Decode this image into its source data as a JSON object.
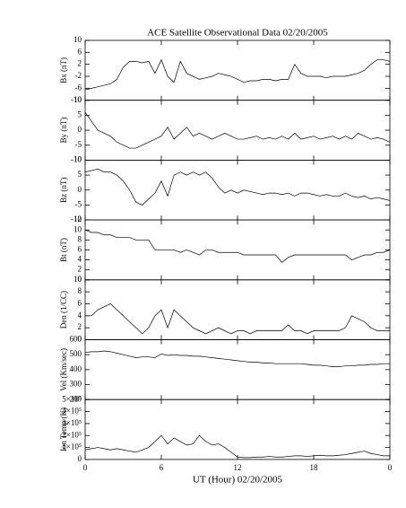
{
  "chart_data": [
    {
      "type": "line",
      "title": "ACE Satellite Observational Data   02/20/2005",
      "ylabel": "Bx (nT)",
      "xlim": [
        0,
        24
      ],
      "ylim": [
        -10,
        10
      ],
      "yticks": [
        10,
        6,
        2,
        -2,
        -6,
        -10
      ],
      "x": [
        0,
        0.5,
        1,
        1.5,
        2,
        2.5,
        3,
        3.5,
        4,
        4.5,
        5,
        5.5,
        6,
        6.5,
        7,
        7.5,
        8,
        8.5,
        9,
        9.5,
        10,
        10.5,
        11,
        11.5,
        12,
        12.5,
        13,
        13.5,
        14,
        14.5,
        15,
        15.5,
        16,
        16.5,
        17,
        17.5,
        18,
        18.5,
        19,
        19.5,
        20,
        20.5,
        21,
        21.5,
        22,
        22.5,
        23,
        23.5,
        24
      ],
      "color": "#000000",
      "values": [
        -6.5,
        -6,
        -5.5,
        -5,
        -4.5,
        -3,
        1,
        3,
        3,
        2.5,
        3,
        -1,
        3.5,
        -2,
        -4,
        3,
        -1,
        -2,
        -3,
        -2.5,
        -2,
        -1,
        -1.5,
        -2,
        -3,
        -4,
        -3.5,
        -3.5,
        -3,
        -3,
        -3.5,
        -3,
        -3,
        2,
        -1,
        -2,
        -2,
        -2,
        -2.5,
        -2,
        -2,
        -2,
        -1.5,
        -1,
        0,
        2,
        3.5,
        3.5,
        3
      ]
    },
    {
      "type": "line",
      "ylabel": "By (nT)",
      "xlim": [
        0,
        24
      ],
      "ylim": [
        -10,
        10
      ],
      "yticks": [
        10,
        5,
        0,
        -5,
        -10
      ],
      "x": [
        0,
        0.5,
        1,
        1.5,
        2,
        2.5,
        3,
        3.5,
        4,
        4.5,
        5,
        5.5,
        6,
        6.5,
        7,
        7.5,
        8,
        8.5,
        9,
        9.5,
        10,
        10.5,
        11,
        11.5,
        12,
        12.5,
        13,
        13.5,
        14,
        14.5,
        15,
        15.5,
        16,
        16.5,
        17,
        17.5,
        18,
        18.5,
        19,
        19.5,
        20,
        20.5,
        21,
        21.5,
        22,
        22.5,
        23,
        23.5,
        24
      ],
      "color": "#000000",
      "values": [
        6,
        3,
        0,
        -1,
        -2,
        -4,
        -5,
        -6,
        -6,
        -5,
        -4,
        -3,
        -2,
        1,
        -3,
        -1,
        1,
        -2,
        -1,
        -2,
        -3,
        -2,
        -1,
        -2,
        -3,
        -3,
        -2.5,
        -2,
        -3,
        -2.5,
        -3,
        -2,
        -3,
        -1,
        -3,
        -2.5,
        -2,
        -3,
        -2.5,
        -2,
        -3,
        -2,
        -3,
        -1,
        -2,
        -3,
        -2.5,
        -3,
        -4
      ]
    },
    {
      "type": "line",
      "ylabel": "Bz (nT)",
      "xlim": [
        0,
        24
      ],
      "ylim": [
        -10,
        10
      ],
      "yticks": [
        10,
        5,
        0,
        -5,
        -10
      ],
      "x": [
        0,
        0.5,
        1,
        1.5,
        2,
        2.5,
        3,
        3.5,
        4,
        4.5,
        5,
        5.5,
        6,
        6.5,
        7,
        7.5,
        8,
        8.5,
        9,
        9.5,
        10,
        10.5,
        11,
        11.5,
        12,
        12.5,
        13,
        13.5,
        14,
        14.5,
        15,
        15.5,
        16,
        16.5,
        17,
        17.5,
        18,
        18.5,
        19,
        19.5,
        20,
        20.5,
        21,
        21.5,
        22,
        22.5,
        23,
        23.5,
        24
      ],
      "color": "#000000",
      "values": [
        6,
        6.5,
        7,
        6,
        6,
        5,
        3,
        0,
        -4,
        -5,
        -3,
        -1,
        3,
        -2,
        5,
        6,
        5,
        6,
        5,
        6,
        4,
        1,
        -1,
        0,
        -1,
        0,
        -0.5,
        -1,
        -1.5,
        -1,
        -1,
        -1.5,
        -1,
        -2,
        -1,
        -1,
        -1.5,
        -2,
        -1.5,
        -2,
        -2,
        -1,
        -2,
        -2.5,
        -2,
        -3,
        -2.5,
        -3,
        -3.5
      ]
    },
    {
      "type": "line",
      "ylabel": "Bt (nT)",
      "xlim": [
        0,
        24
      ],
      "ylim": [
        0,
        12
      ],
      "yticks": [
        12,
        10,
        8,
        6,
        4,
        2,
        0
      ],
      "x": [
        0,
        0.5,
        1,
        1.5,
        2,
        2.5,
        3,
        3.5,
        4,
        4.5,
        5,
        5.5,
        6,
        6.5,
        7,
        7.5,
        8,
        8.5,
        9,
        9.5,
        10,
        10.5,
        11,
        11.5,
        12,
        12.5,
        13,
        13.5,
        14,
        14.5,
        15,
        15.5,
        16,
        16.5,
        17,
        17.5,
        18,
        18.5,
        19,
        19.5,
        20,
        20.5,
        21,
        21.5,
        22,
        22.5,
        23,
        23.5,
        24
      ],
      "color": "#000000",
      "values": [
        10,
        9.5,
        9.5,
        9,
        9,
        8.5,
        8.5,
        8.5,
        8,
        8,
        8,
        6,
        6,
        6,
        6,
        5.5,
        6,
        5.5,
        5,
        6,
        6,
        5.5,
        5.5,
        5.5,
        5.5,
        5,
        5,
        5,
        5,
        5,
        5,
        3.5,
        4.5,
        5,
        5,
        5,
        5,
        5,
        5,
        5,
        5,
        5,
        4,
        4.5,
        5,
        5,
        5.5,
        5.5,
        6
      ]
    },
    {
      "type": "line",
      "ylabel": "Den (1/CC)",
      "xlim": [
        0,
        24
      ],
      "ylim": [
        0,
        10
      ],
      "yticks": [
        10,
        8,
        6,
        4,
        2,
        0
      ],
      "x": [
        0,
        0.5,
        1,
        1.5,
        2,
        2.5,
        3,
        3.5,
        4,
        4.5,
        5,
        5.5,
        6,
        6.5,
        7,
        7.5,
        8,
        8.5,
        9,
        9.5,
        10,
        10.5,
        11,
        11.5,
        12,
        12.5,
        13,
        13.5,
        14,
        14.5,
        15,
        15.5,
        16,
        16.5,
        17,
        17.5,
        18,
        18.5,
        19,
        19.5,
        20,
        20.5,
        21,
        21.5,
        22,
        22.5,
        23,
        23.5,
        24
      ],
      "color": "#000000",
      "values": [
        4,
        4,
        5,
        5.5,
        6,
        5,
        4,
        3,
        2,
        1,
        2,
        4,
        5,
        2,
        5,
        4,
        3,
        2,
        1.5,
        1,
        1.5,
        2,
        1.5,
        1,
        1.5,
        1.5,
        1,
        1.5,
        1.5,
        1.5,
        1.5,
        1.5,
        2.5,
        1.5,
        1.5,
        1,
        1.5,
        1.5,
        1.5,
        1.5,
        1.5,
        2,
        4,
        3.5,
        3,
        2,
        1.5,
        1.5,
        1.5
      ]
    },
    {
      "type": "line",
      "ylabel": "Vel (Km/sec)",
      "xlim": [
        0,
        24
      ],
      "ylim": [
        200,
        600
      ],
      "yticks": [
        600,
        500,
        400,
        300,
        200
      ],
      "x": [
        0,
        0.5,
        1,
        1.5,
        2,
        2.5,
        3,
        3.5,
        4,
        4.5,
        5,
        5.5,
        6,
        6.5,
        7,
        7.5,
        8,
        8.5,
        9,
        9.5,
        10,
        10.5,
        11,
        11.5,
        12,
        12.5,
        13,
        13.5,
        14,
        14.5,
        15,
        15.5,
        16,
        16.5,
        17,
        17.5,
        18,
        18.5,
        19,
        19.5,
        20,
        20.5,
        21,
        21.5,
        22,
        22.5,
        23,
        23.5,
        24
      ],
      "color": "#000000",
      "values": [
        515,
        520,
        520,
        525,
        520,
        510,
        500,
        490,
        480,
        485,
        485,
        480,
        505,
        495,
        500,
        495,
        495,
        490,
        490,
        485,
        480,
        475,
        470,
        465,
        460,
        455,
        450,
        450,
        445,
        445,
        440,
        440,
        440,
        440,
        440,
        435,
        430,
        430,
        425,
        420,
        420,
        425,
        425,
        430,
        430,
        435,
        435,
        440,
        440
      ]
    },
    {
      "type": "line",
      "ylabel": "Ion Temp (K)",
      "xlabel": "UT (Hour)   02/20/2005",
      "xlim": [
        0,
        24
      ],
      "ylim": [
        0,
        500000
      ],
      "yticks": [
        {
          "value": 500000,
          "label": "5×10⁵"
        },
        {
          "value": 400000,
          "label": "4×10⁵"
        },
        {
          "value": 300000,
          "label": "3×10⁵"
        },
        {
          "value": 200000,
          "label": "2×10⁵"
        },
        {
          "value": 100000,
          "label": "1×10⁵"
        },
        0
      ],
      "xticks": [
        0,
        6,
        12,
        18,
        {
          "value": 24,
          "label": "0"
        }
      ],
      "x": [
        0,
        0.5,
        1,
        1.5,
        2,
        2.5,
        3,
        3.5,
        4,
        4.5,
        5,
        5.5,
        6,
        6.5,
        7,
        7.5,
        8,
        8.5,
        9,
        9.5,
        10,
        10.5,
        11,
        11.5,
        12,
        12.5,
        13,
        13.5,
        14,
        14.5,
        15,
        15.5,
        16,
        16.5,
        17,
        17.5,
        18,
        18.5,
        19,
        19.5,
        20,
        20.5,
        21,
        21.5,
        22,
        22.5,
        23,
        23.5,
        24
      ],
      "color": "#000000",
      "values": [
        80000,
        90000,
        100000,
        90000,
        80000,
        90000,
        80000,
        70000,
        60000,
        80000,
        100000,
        150000,
        200000,
        130000,
        180000,
        150000,
        120000,
        130000,
        200000,
        150000,
        120000,
        130000,
        100000,
        60000,
        20000,
        15000,
        15000,
        20000,
        20000,
        25000,
        20000,
        20000,
        25000,
        30000,
        30000,
        25000,
        30000,
        35000,
        30000,
        30000,
        35000,
        40000,
        50000,
        60000,
        70000,
        50000,
        40000,
        30000,
        30000
      ]
    }
  ]
}
